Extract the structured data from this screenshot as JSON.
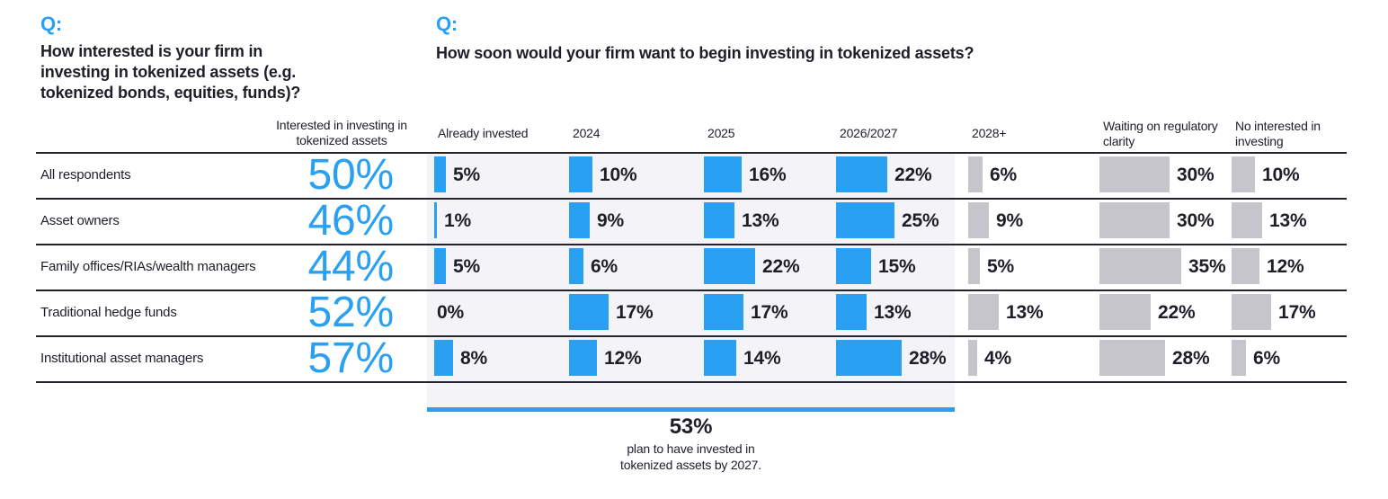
{
  "questions": {
    "left": {
      "label": "Q:",
      "text": "How interested is your firm in investing in tokenized assets (e.g. tokenized bonds, equities, funds)?"
    },
    "right": {
      "label": "Q:",
      "text": "How soon would your firm want to begin investing in tokenized assets?"
    }
  },
  "chart_data": {
    "type": "bar",
    "unit": "%",
    "categories": [
      "All respondents",
      "Asset owners",
      "Family offices/RIAs/wealth managers",
      "Traditional hedge funds",
      "Institutional asset managers"
    ],
    "series": [
      {
        "name": "Interested in investing in tokenized assets",
        "values": [
          50,
          46,
          44,
          52,
          57
        ]
      },
      {
        "name": "Already invested",
        "values": [
          5,
          1,
          5,
          0,
          8
        ]
      },
      {
        "name": "2024",
        "values": [
          10,
          9,
          6,
          17,
          12
        ]
      },
      {
        "name": "2025",
        "values": [
          16,
          13,
          22,
          17,
          14
        ]
      },
      {
        "name": "2026/2027",
        "values": [
          22,
          25,
          15,
          13,
          28
        ]
      },
      {
        "name": "2028+",
        "values": [
          6,
          9,
          5,
          13,
          4
        ]
      },
      {
        "name": "Waiting on regulatory clarity",
        "values": [
          30,
          30,
          35,
          22,
          28
        ]
      },
      {
        "name": "No interested in investing",
        "values": [
          10,
          13,
          12,
          17,
          6
        ]
      }
    ],
    "highlighted_series": [
      "Already invested",
      "2024",
      "2025",
      "2026/2027"
    ],
    "annotation": "53% plan to have invested in tokenized assets by 2027.",
    "legend_position": "none",
    "grid": "row-dividers-only"
  },
  "callout": {
    "value": "53%",
    "line1": "plan to have invested in",
    "line2": "tokenized assets by 2027."
  },
  "colors": {
    "accent_blue": "#2AA0F2",
    "bar_gray": "#C6C5CC",
    "band_bg": "#F3F3F8",
    "text_dark": "#1E1E28"
  }
}
